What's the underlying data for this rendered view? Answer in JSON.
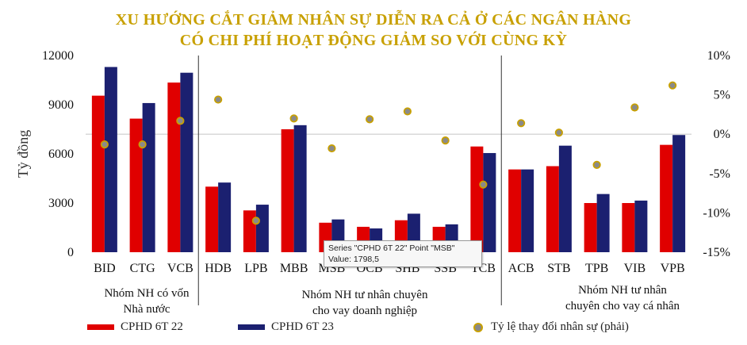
{
  "title_line1": "XU HƯỚNG CẮT GIẢM NHÂN SỰ DIỄN RA CẢ Ở CÁC NGÂN HÀNG",
  "title_line2": "CÓ CHI PHÍ HOẠT ĐỘNG GIẢM SO VỚI CÙNG KỲ",
  "groups": [
    {
      "label_line1": "Nhóm NH có vốn",
      "label_line2": "Nhà nước"
    },
    {
      "label_line1": "Nhóm NH tư nhân chuyên",
      "label_line2": "cho vay doanh nghiệp"
    },
    {
      "label_line1": "Nhóm NH tư nhân",
      "label_line2": "chuyên cho vay cá nhân"
    }
  ],
  "tooltip": {
    "line1": "Series \"CPHD 6T 22\" Point \"MSB\"",
    "line2": "Value: 1798,5"
  },
  "legend": {
    "s1": "CPHD 6T 22",
    "s2": "CPHD 6T 23",
    "s3": "Tỷ lệ thay đổi nhân sự (phải)"
  },
  "colors": {
    "s1": "#e00000",
    "s2": "#1b2070",
    "dot_fill": "#8a8a8a",
    "dot_edge": "#c8a000",
    "title": "#c8a000"
  },
  "chart_data": {
    "type": "bar",
    "categories": [
      "BID",
      "CTG",
      "VCB",
      "HDB",
      "LPB",
      "MBB",
      "MSB",
      "OCB",
      "SHB",
      "SSB",
      "TCB",
      "ACB",
      "STB",
      "TPB",
      "VIB",
      "VPB"
    ],
    "series": [
      {
        "name": "CPHD 6T 22",
        "values": [
          9550,
          8150,
          10350,
          4000,
          2550,
          7500,
          1800,
          1550,
          1950,
          1550,
          6450,
          5050,
          5250,
          3000,
          3000,
          6550
        ]
      },
      {
        "name": "CPHD 6T 23",
        "values": [
          11300,
          9100,
          10950,
          4250,
          2900,
          7750,
          2000,
          1450,
          2350,
          1700,
          6050,
          5050,
          6500,
          3550,
          3150,
          7150
        ]
      }
    ],
    "line_series": {
      "name": "Tỷ lệ thay đổi nhân sự (phải)",
      "values": [
        -1.3,
        -1.3,
        1.7,
        4.4,
        -11,
        2,
        -1.8,
        1.9,
        2.9,
        -0.8,
        -6.4,
        1.4,
        0.2,
        -3.9,
        3.4,
        6.2
      ]
    },
    "ylabel": "Tỷ đồng",
    "ylim": [
      0,
      12000
    ],
    "yticks": [
      "0",
      "3000",
      "6000",
      "9000",
      "12000"
    ],
    "y2lim": [
      -15,
      10
    ],
    "y2ticks": [
      "-15%",
      "-10%",
      "-5%",
      "0%",
      "5%",
      "10%"
    ]
  }
}
